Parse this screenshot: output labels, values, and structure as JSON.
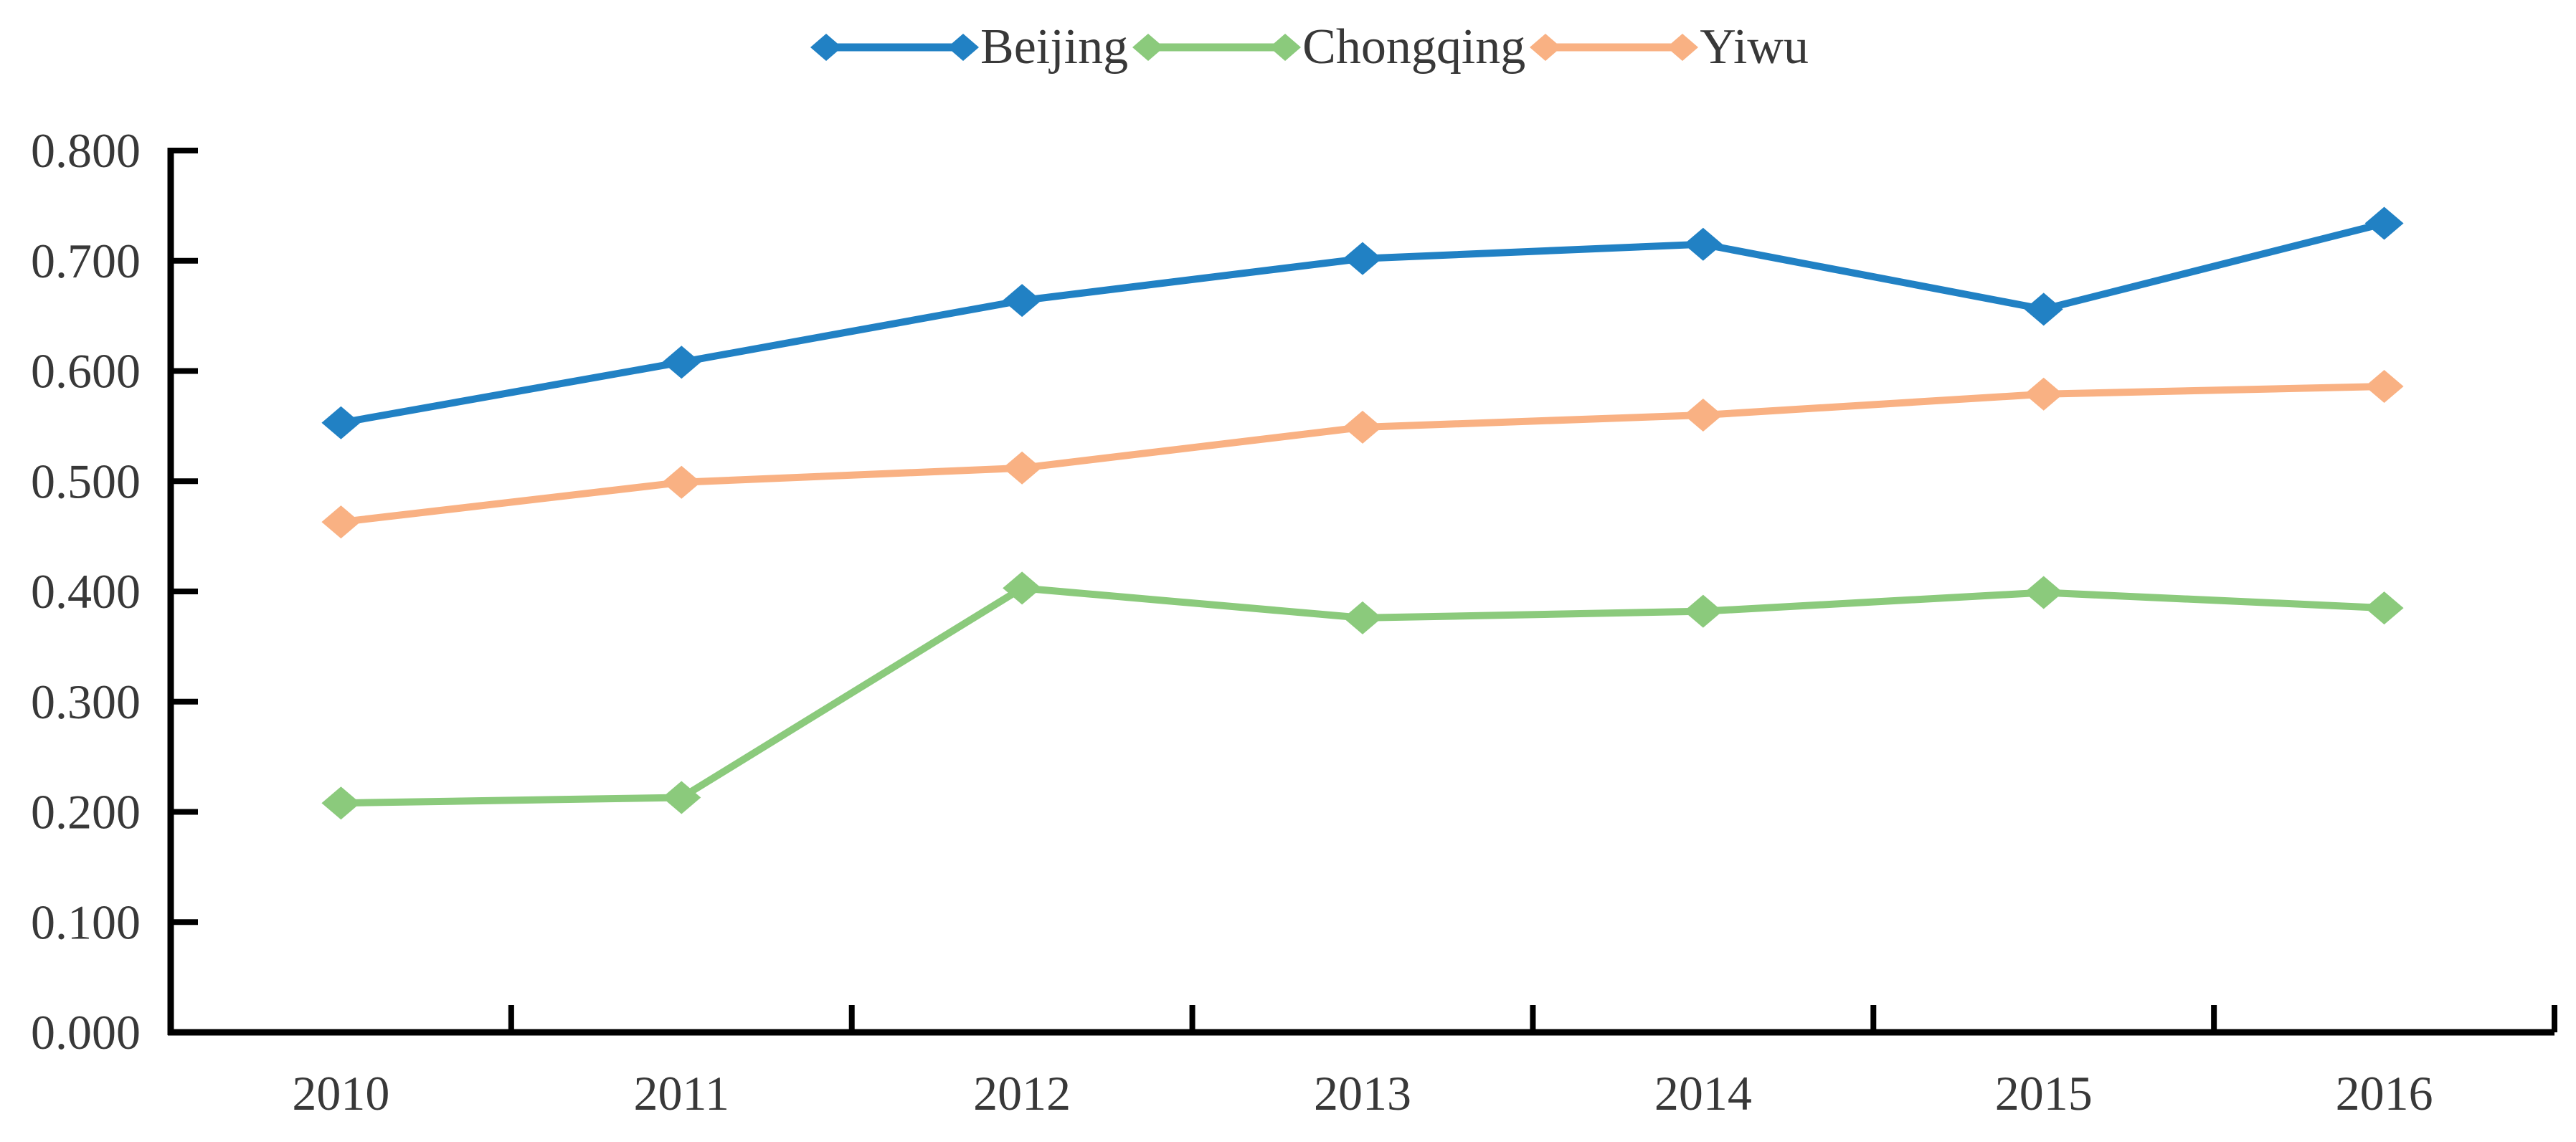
{
  "chart_data": {
    "type": "line",
    "title": "",
    "xlabel": "",
    "ylabel": "",
    "categories": [
      "2010",
      "2011",
      "2012",
      "2013",
      "2014",
      "2015",
      "2016"
    ],
    "series": [
      {
        "name": "Beijing",
        "color": "#2181C4",
        "values": [
          0.553,
          0.608,
          0.664,
          0.702,
          0.715,
          0.656,
          0.734
        ]
      },
      {
        "name": "Chongqing",
        "color": "#8BCA7C",
        "values": [
          0.208,
          0.213,
          0.403,
          0.376,
          0.382,
          0.399,
          0.385
        ]
      },
      {
        "name": "Yiwu",
        "color": "#F9B183",
        "values": [
          0.463,
          0.499,
          0.512,
          0.549,
          0.56,
          0.579,
          0.586
        ]
      }
    ],
    "ylim": [
      0,
      0.8
    ],
    "ytick_step": 0.1,
    "ytick_decimals": 3,
    "yticks": [
      "0.000",
      "0.100",
      "0.200",
      "0.300",
      "0.400",
      "0.500",
      "0.600",
      "0.700",
      "0.800"
    ],
    "grid": false,
    "legend_position": "top-center",
    "marker": "diamond",
    "axis_color": "#000000",
    "label_color": "#383838"
  }
}
